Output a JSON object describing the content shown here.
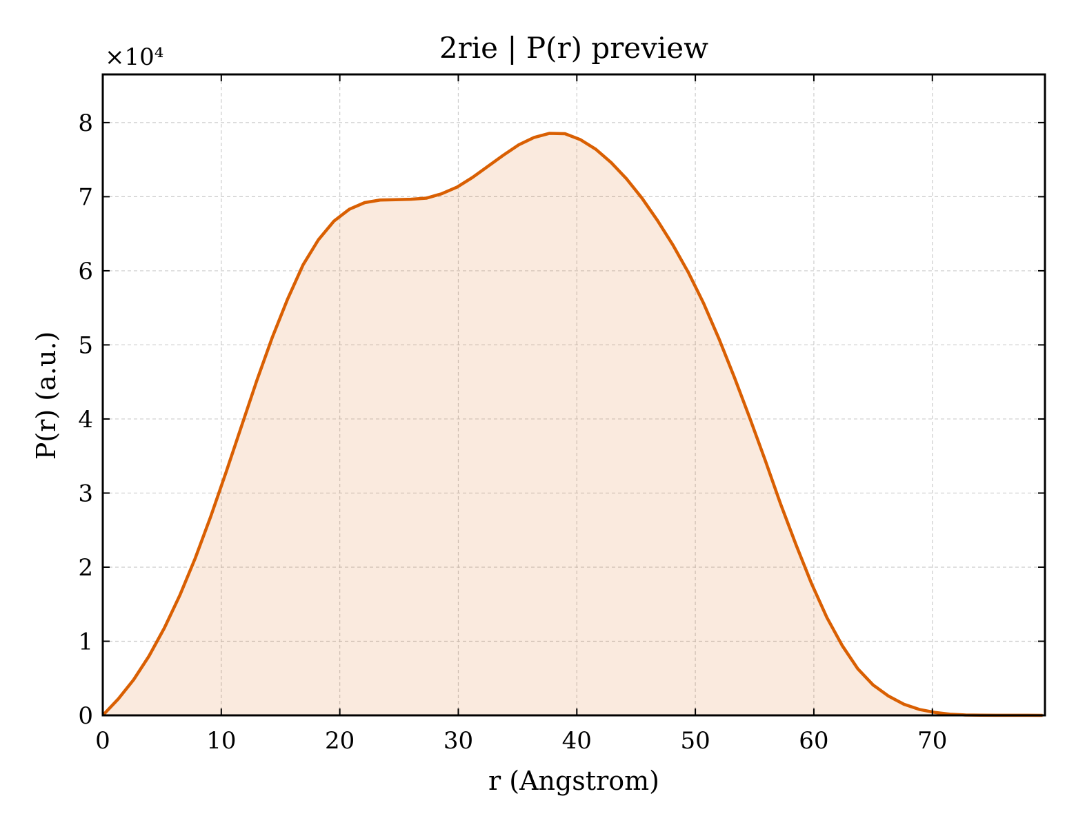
{
  "colors": {
    "line": "#d95f02",
    "fill": "#d95f02",
    "fill_opacity": 0.13,
    "grid": "#cccccc",
    "axes": "#000000"
  },
  "chart_data": {
    "type": "area",
    "title": "2rie | P(r) preview",
    "xlabel": "r (Angstrom)",
    "ylabel": "P(r) (a.u.)",
    "y_multiplier_label": "×10⁴",
    "xlim": [
      0,
      79.5
    ],
    "ylim": [
      0,
      8.65
    ],
    "x_ticks": [
      0,
      10,
      20,
      30,
      40,
      50,
      60,
      70
    ],
    "x_tick_labels": [
      "0",
      "10",
      "20",
      "30",
      "40",
      "50",
      "60",
      "70"
    ],
    "y_ticks": [
      0,
      1,
      2,
      3,
      4,
      5,
      6,
      7,
      8
    ],
    "y_tick_labels": [
      "0",
      "1",
      "2",
      "3",
      "4",
      "5",
      "6",
      "7",
      "8"
    ],
    "grid": true,
    "legend": "none",
    "series": [
      {
        "x": [
          0,
          1.3,
          2.6,
          3.9,
          5.2,
          6.5,
          7.8,
          9.1,
          10.4,
          11.7,
          13.0,
          14.3,
          15.6,
          16.9,
          18.2,
          19.5,
          20.8,
          22.1,
          23.4,
          24.7,
          26.0,
          27.3,
          28.6,
          29.9,
          31.2,
          32.5,
          33.8,
          35.1,
          36.4,
          37.7,
          39.0,
          40.3,
          41.6,
          42.9,
          44.2,
          45.5,
          46.8,
          48.1,
          49.4,
          50.7,
          52.0,
          53.3,
          54.6,
          55.9,
          57.2,
          58.5,
          59.8,
          61.1,
          62.4,
          63.7,
          65.0,
          66.3,
          67.6,
          68.9,
          70.2,
          71.5,
          72.8,
          74.1,
          75.4,
          76.7,
          78.0,
          79.3
        ],
        "y": [
          0.0,
          0.22,
          0.48,
          0.8,
          1.18,
          1.62,
          2.12,
          2.68,
          3.28,
          3.9,
          4.52,
          5.1,
          5.62,
          6.08,
          6.42,
          6.67,
          6.83,
          6.92,
          6.955,
          6.96,
          6.965,
          6.98,
          7.04,
          7.13,
          7.26,
          7.41,
          7.56,
          7.7,
          7.8,
          7.855,
          7.85,
          7.77,
          7.64,
          7.46,
          7.24,
          6.98,
          6.68,
          6.35,
          5.98,
          5.56,
          5.08,
          4.56,
          4.01,
          3.44,
          2.85,
          2.3,
          1.78,
          1.32,
          0.94,
          0.63,
          0.41,
          0.26,
          0.15,
          0.08,
          0.04,
          0.015,
          0.005,
          0.002,
          0.001,
          0.001,
          0.001,
          0.0
        ]
      }
    ]
  }
}
